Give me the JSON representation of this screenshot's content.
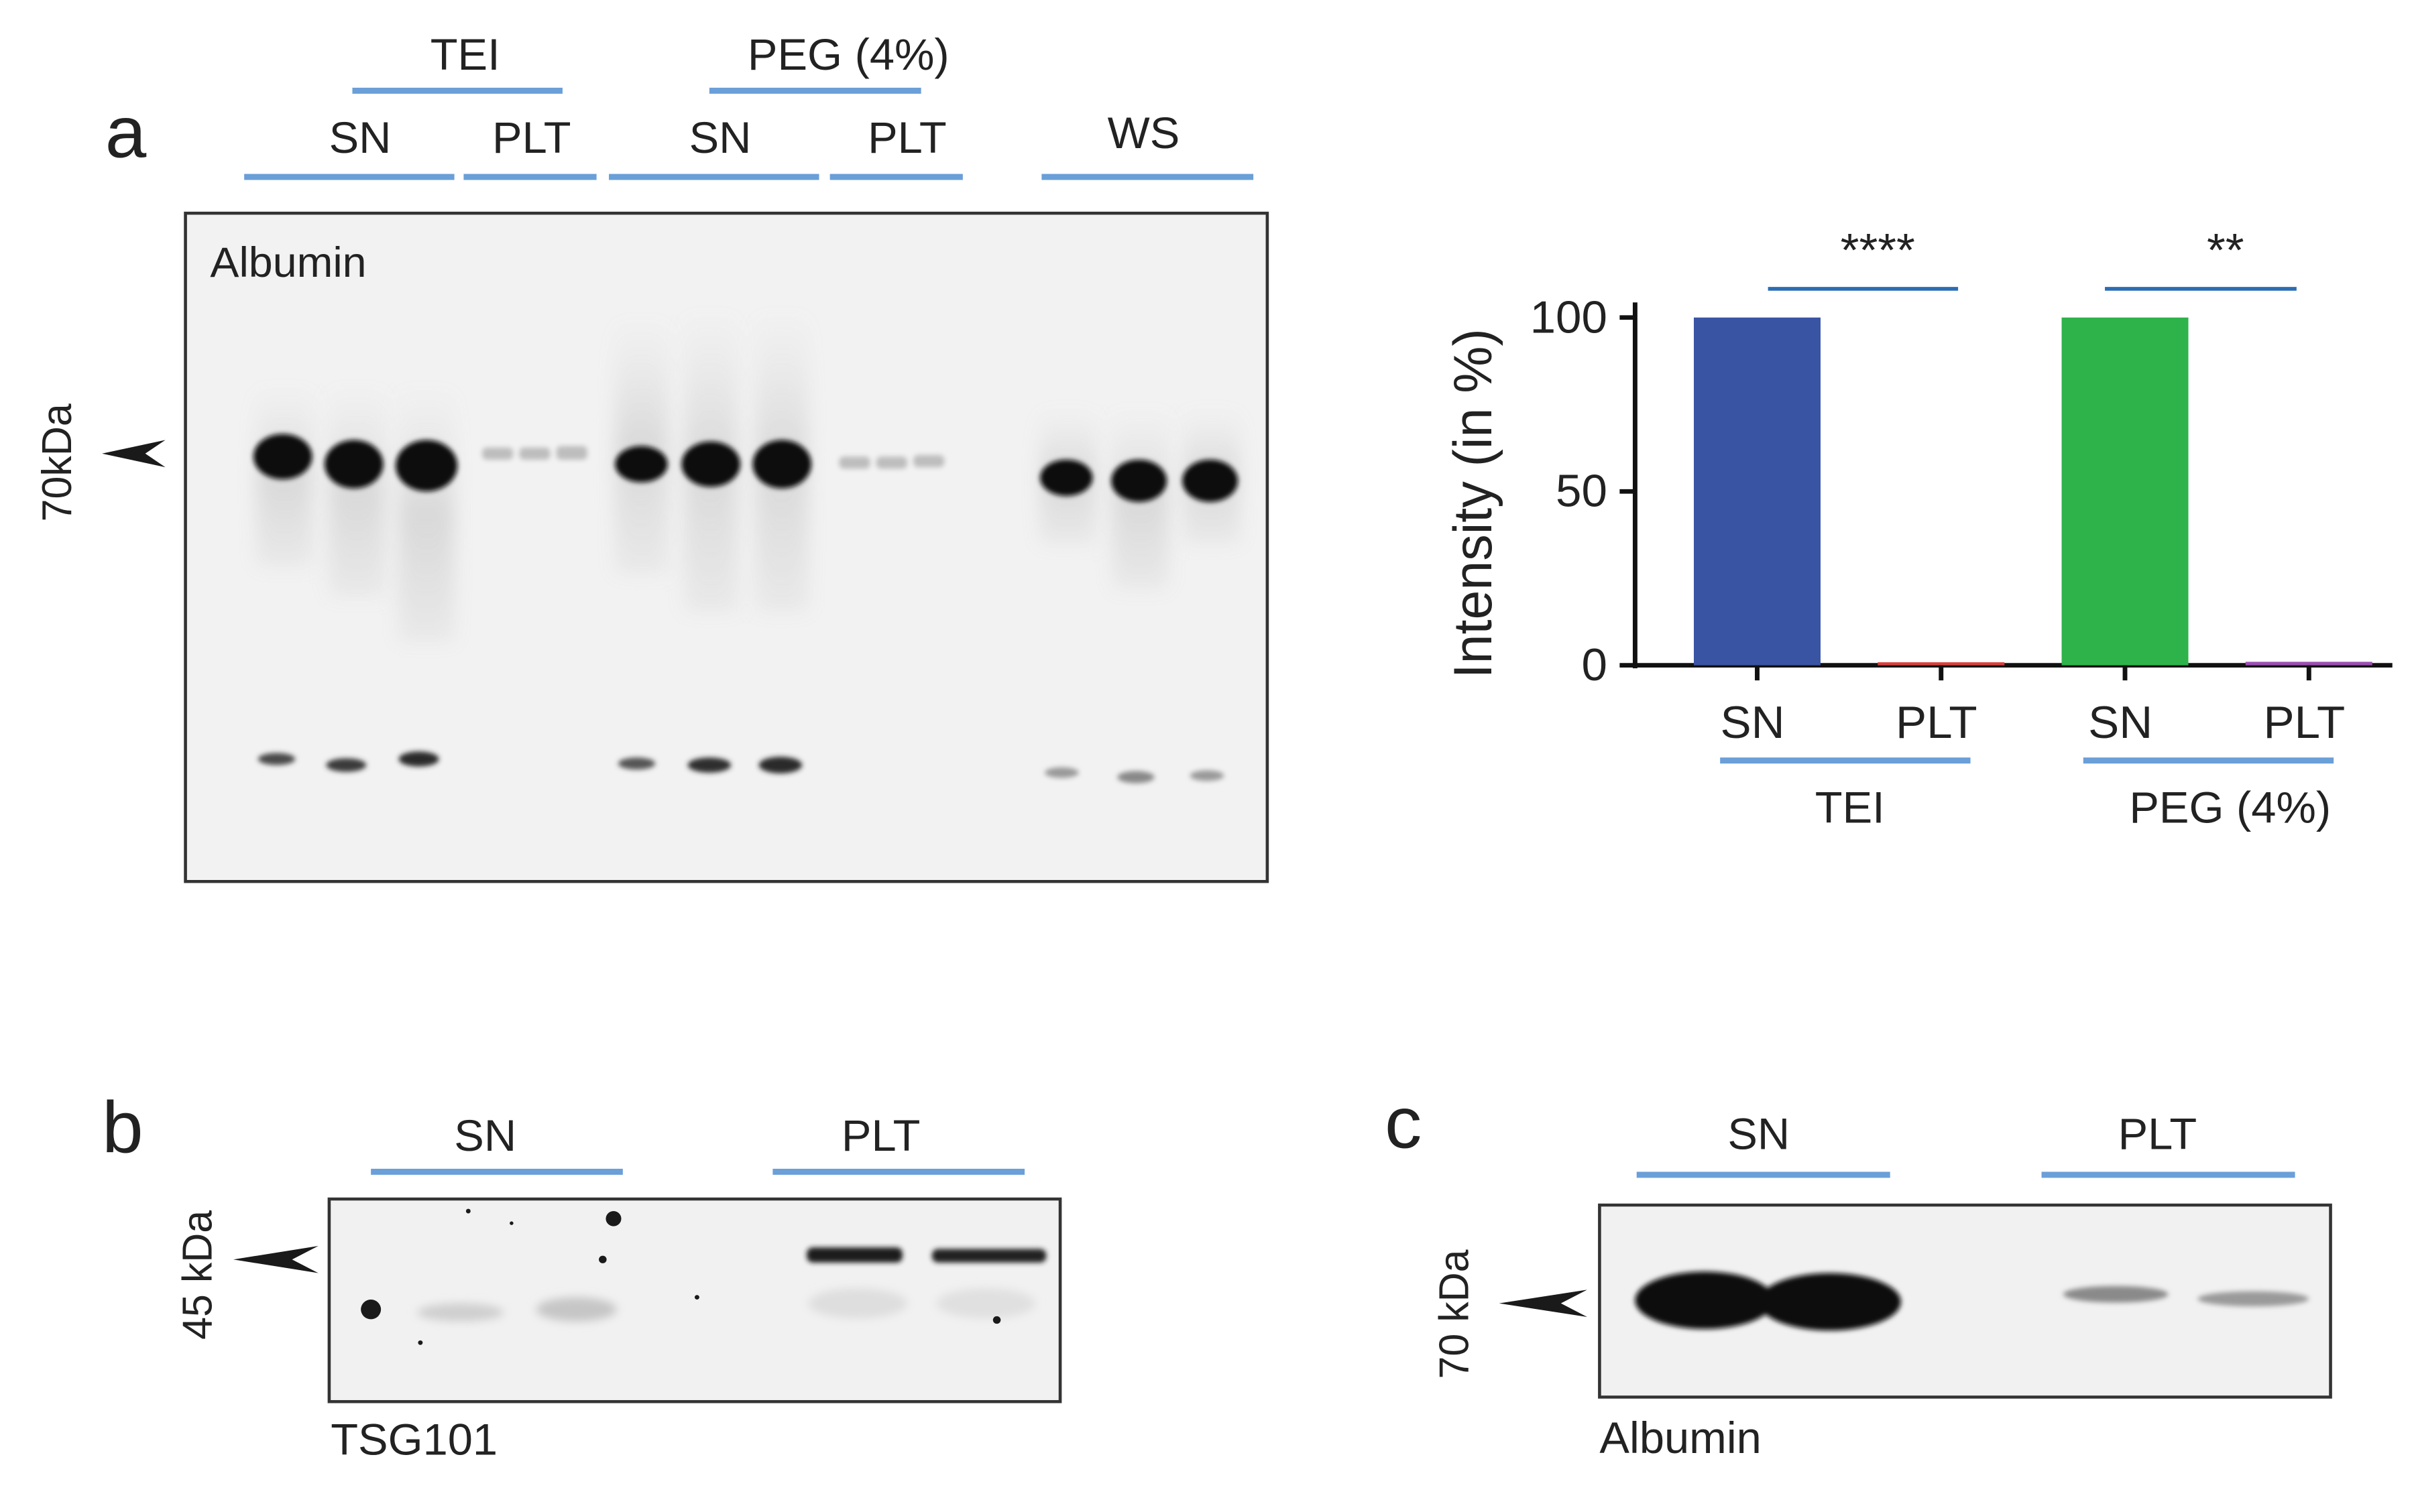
{
  "panel_a": {
    "letter": "a",
    "marker_label": "70kDa",
    "blot_label": "Albumin",
    "group_tei": "TEI",
    "group_peg": "PEG (4%)",
    "lanes": [
      "SN",
      "PLT",
      "SN",
      "PLT",
      "WS"
    ]
  },
  "panel_b": {
    "letter": "b",
    "marker_label": "45 kDa",
    "blot_label": "TSG101",
    "lanes": [
      "SN",
      "PLT"
    ]
  },
  "panel_c": {
    "letter": "c",
    "marker_label": "70 kDa",
    "blot_label": "Albumin",
    "lanes": [
      "SN",
      "PLT"
    ]
  },
  "chart_data": {
    "type": "bar",
    "ylabel": "Intensity (in %)",
    "ylim": [
      0,
      100
    ],
    "yticks": [
      "0",
      "50",
      "100"
    ],
    "categories": [
      "SN",
      "PLT",
      "SN",
      "PLT"
    ],
    "groups": [
      "TEI",
      "PEG (4%)"
    ],
    "values": [
      100,
      0.5,
      100,
      1
    ],
    "colors": [
      "#3a54a4",
      "#d94040",
      "#2eb34a",
      "#9b4fb3"
    ],
    "significance": [
      "****",
      "**"
    ]
  }
}
